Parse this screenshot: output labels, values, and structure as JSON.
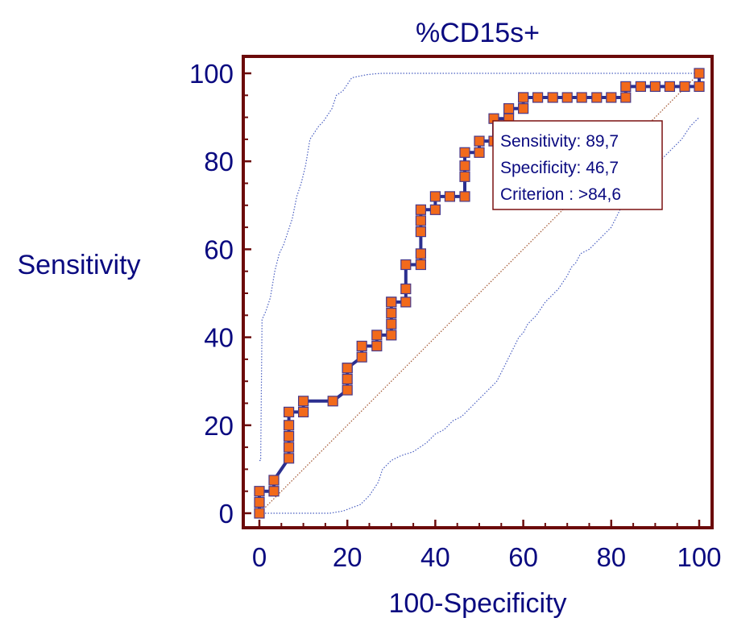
{
  "chart_data": {
    "type": "line",
    "title": "%CD15s+",
    "xlabel": "100-Specificity",
    "ylabel": "Sensitivity",
    "xlim": [
      0,
      100
    ],
    "ylim": [
      0,
      100
    ],
    "xticks": [
      0,
      20,
      40,
      60,
      80,
      100
    ],
    "yticks": [
      0,
      20,
      40,
      60,
      80,
      100
    ],
    "grid": false,
    "colors": {
      "frame": "#6b0a0a",
      "curve": "#2b2f8f",
      "marker_fill": "#f26a1b",
      "marker_edge": "#4a3a8a",
      "ci_band": "#4a5fc1",
      "diagonal": "#a0522d",
      "text": "#0a0a80"
    },
    "series": [
      {
        "type": "roc",
        "x": [
          0,
          0,
          0,
          3.3,
          3.3,
          6.7,
          6.7,
          6.7,
          6.7,
          6.7,
          10,
          10,
          16.7,
          20,
          20,
          20,
          20,
          23.3,
          23.3,
          26.7,
          26.7,
          30,
          30,
          30,
          30,
          30,
          33.3,
          33.3,
          33.3,
          36.7,
          36.7,
          36.7,
          36.7,
          36.7,
          40,
          40,
          43.3,
          46.7,
          46.7,
          46.7,
          46.7,
          50,
          50,
          53.3,
          53.3,
          56.7,
          56.7,
          60,
          60,
          60,
          63.3,
          66.7,
          70,
          73.3,
          76.7,
          80,
          83.3,
          83.3,
          86.7,
          90,
          93.3,
          96.7,
          100,
          100
        ],
        "y": [
          0,
          2.5,
          5,
          5,
          7.5,
          12.5,
          15,
          17.5,
          20,
          23,
          23,
          25.5,
          25.5,
          28,
          30.5,
          33,
          33,
          35.5,
          38,
          38,
          40.5,
          40.5,
          43,
          45.5,
          48,
          48,
          48,
          51,
          56.5,
          56.5,
          59,
          64,
          66.5,
          69,
          69,
          72,
          72,
          72,
          76.5,
          79,
          82,
          82,
          84.6,
          84.6,
          89.7,
          89.7,
          92,
          92,
          94.5,
          94.5,
          94.5,
          94.5,
          94.5,
          94.5,
          94.5,
          94.5,
          94.5,
          97,
          97,
          97,
          97,
          97,
          97,
          100
        ]
      },
      {
        "type": "ci_upper",
        "x": [
          0,
          0.3,
          0.6,
          0.6,
          1.5,
          1.5,
          2.5,
          2.5,
          3.5,
          3.5,
          4.5,
          4.5,
          5.5,
          5.5,
          6.5,
          6.5,
          7.5,
          7.5,
          8.5,
          8.5,
          9.5,
          9.5,
          10.5,
          10.5,
          11.5,
          11.5,
          13.5,
          13.5,
          14.5,
          14.5,
          16.5,
          16.5,
          17.5,
          17.5,
          19,
          19,
          21,
          21,
          23.5,
          23.5,
          24.5,
          24.5,
          25.5,
          25.5,
          26.5,
          26.5,
          28,
          28,
          30,
          30,
          31.5,
          31.5,
          33.5,
          33.5,
          36,
          36,
          36.5,
          36.5,
          55,
          55,
          90,
          90,
          99,
          99,
          100
        ],
        "y": [
          12,
          12,
          44,
          44,
          46,
          46,
          49,
          49,
          55,
          55,
          59,
          59,
          61,
          61,
          64,
          64,
          67,
          67,
          72,
          72,
          75,
          75,
          79,
          79,
          85,
          85,
          88,
          88,
          89,
          89,
          92,
          92,
          95,
          95,
          96,
          96,
          99,
          99,
          99.5,
          99.5,
          99.7,
          99.7,
          99.8,
          99.8,
          99.9,
          99.9,
          100,
          100,
          100,
          100,
          100,
          100,
          100,
          100,
          100,
          100,
          100,
          100,
          100,
          100,
          100,
          100,
          100,
          100,
          100
        ]
      },
      {
        "type": "ci_lower",
        "x": [
          0,
          16,
          19,
          23,
          25,
          27,
          28,
          30,
          32,
          35,
          38,
          40,
          42,
          44,
          46,
          48,
          50,
          51,
          52,
          53,
          54,
          55,
          56,
          57,
          58,
          59,
          60,
          61,
          62,
          63,
          65,
          66,
          67,
          68,
          70,
          71,
          72,
          73,
          75,
          76,
          77,
          78,
          80,
          81,
          82,
          84,
          86,
          88,
          90,
          92,
          94,
          96,
          98,
          99,
          100
        ],
        "y": [
          0,
          0,
          0.5,
          2,
          4,
          7,
          10,
          12,
          13,
          14,
          16,
          18,
          19,
          21,
          22,
          24,
          26,
          27,
          28,
          29,
          30,
          32,
          34,
          36,
          38,
          40,
          41,
          43,
          44,
          45,
          48,
          49,
          50,
          51,
          54,
          56,
          57,
          59,
          60,
          61,
          62,
          63,
          65,
          67,
          69,
          71,
          75,
          77,
          79,
          81,
          83,
          85,
          88,
          89,
          90
        ]
      },
      {
        "type": "reference",
        "x": [
          0,
          100
        ],
        "y": [
          0,
          100
        ]
      }
    ],
    "annotation": {
      "lines": [
        "Sensitivity: 89,7",
        "Specificity: 46,7",
        "Criterion : >84,6"
      ]
    }
  }
}
